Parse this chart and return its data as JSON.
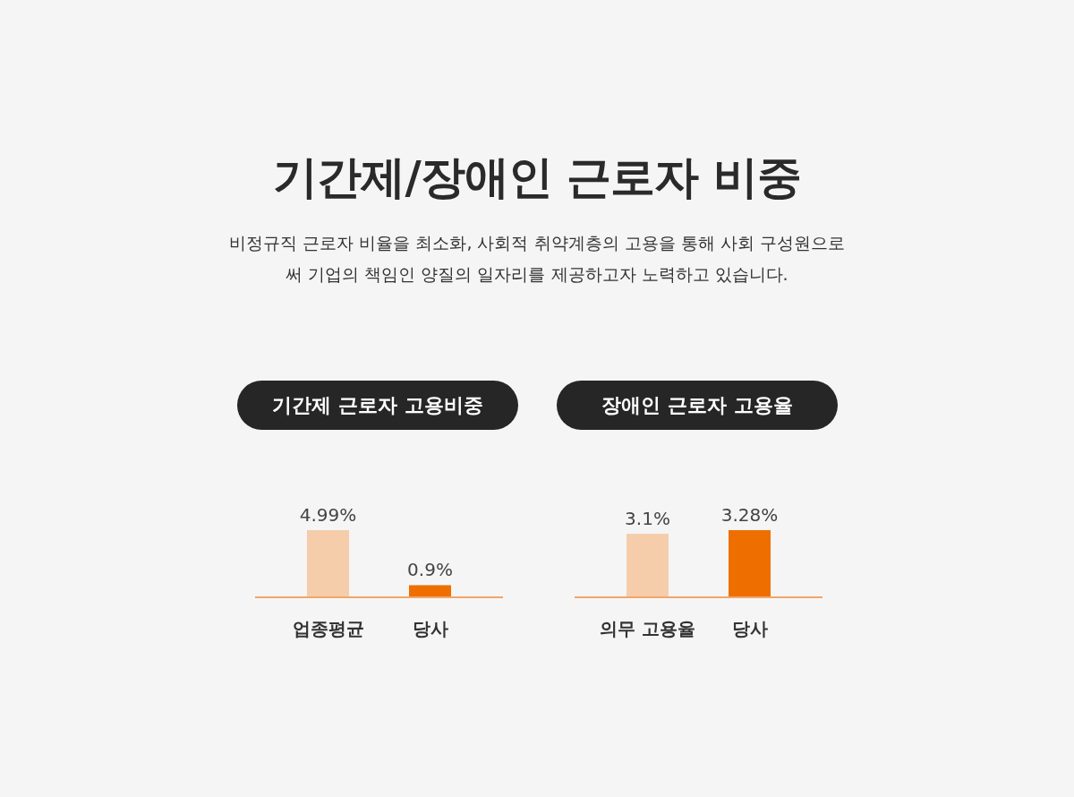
{
  "chart_data": [
    {
      "type": "other",
      "title": "기간제/장애인 근로자 비중",
      "subtitle": "비정규직 근로자 비율을 최소화, 사회적 취약계층의 고용을 통해 사회 구성원으로써 기업의 책임인 양질의 일자리를 제공하고자 노력하고 있습니다."
    },
    {
      "type": "bar",
      "title": "기간제 근로자 고용비중",
      "categories": [
        "업종평균",
        "당사"
      ],
      "values": [
        4.99,
        0.9
      ],
      "colors": [
        "#f5cdab",
        "#ee6f00"
      ],
      "value_labels": [
        "4.99%",
        "0.9%"
      ]
    },
    {
      "type": "bar",
      "title": "장애인 근로자 고용율",
      "categories": [
        "의무 고용율",
        "당사"
      ],
      "values": [
        3.1,
        3.28
      ],
      "colors": [
        "#f5cdab",
        "#ee6f00"
      ],
      "value_labels": [
        "3.1%",
        "3.28%"
      ]
    }
  ]
}
